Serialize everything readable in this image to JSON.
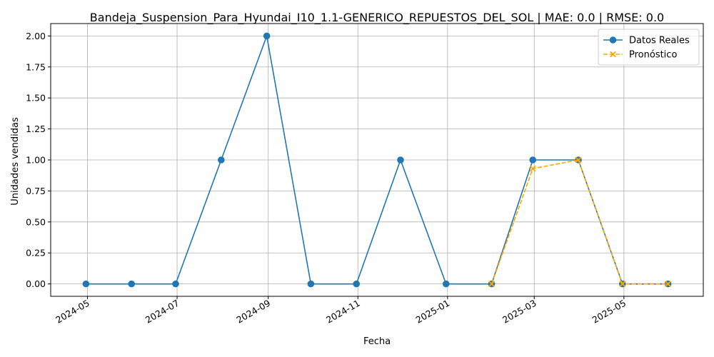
{
  "chart_data": {
    "type": "line",
    "title": "Bandeja_Suspension_Para_Hyundai_I10_1.1-GENERICO_REPUESTOS_DEL_SOL | MAE: 0.0 | RMSE: 0.0",
    "xlabel": "Fecha",
    "ylabel": "Unidades vendidas",
    "xlim": [
      "2024-04-06",
      "2025-06-24"
    ],
    "ylim": [
      -0.1,
      2.1
    ],
    "x_ticks": [
      "2024-05-01",
      "2024-07-01",
      "2024-09-01",
      "2024-11-01",
      "2025-01-01",
      "2025-03-01",
      "2025-05-01"
    ],
    "x_tick_labels": [
      "2024-05",
      "2024-07",
      "2024-09",
      "2024-11",
      "2025-01",
      "2025-03",
      "2025-05"
    ],
    "y_ticks": [
      0.0,
      0.25,
      0.5,
      0.75,
      1.0,
      1.25,
      1.5,
      1.75,
      2.0
    ],
    "y_tick_labels": [
      "0.00",
      "0.25",
      "0.50",
      "0.75",
      "1.00",
      "1.25",
      "1.50",
      "1.75",
      "2.00"
    ],
    "grid": true,
    "legend_position": "top-right",
    "series": [
      {
        "name": "Datos Reales",
        "color": "#1f77b4",
        "marker": "circle",
        "linestyle": "solid",
        "x": [
          "2024-04-30",
          "2024-05-31",
          "2024-06-30",
          "2024-07-31",
          "2024-08-31",
          "2024-09-30",
          "2024-10-31",
          "2024-11-30",
          "2024-12-31",
          "2025-01-31",
          "2025-02-28",
          "2025-03-31",
          "2025-04-30",
          "2025-05-31"
        ],
        "values": [
          0,
          0,
          0,
          1,
          2,
          0,
          0,
          1,
          0,
          0,
          1,
          1,
          0,
          0
        ]
      },
      {
        "name": "Pronóstico",
        "color": "#ffa500",
        "marker": "x",
        "linestyle": "dashed",
        "x": [
          "2025-01-31",
          "2025-02-28",
          "2025-03-31",
          "2025-04-30",
          "2025-05-31"
        ],
        "values": [
          0,
          0.93,
          1,
          0,
          0
        ]
      }
    ]
  }
}
